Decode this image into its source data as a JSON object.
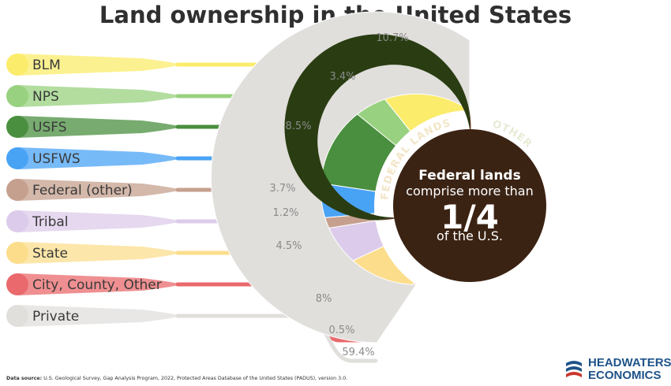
{
  "title": "Land ownership in the United States",
  "source": {
    "label": "Data source:",
    "text": "U.S. Geological Survey, Gap Analysis Program, 2022, Protected Areas Database of the United States (PADUS), version 3.0."
  },
  "logo": {
    "line1": "HEADWATERS",
    "line2": "ECONOMICS"
  },
  "center": {
    "line1": "Federal lands",
    "line2": "comprise more than",
    "line3": "1/4",
    "line4": "of the U.S.",
    "ring_federal": "FEDERAL LANDS",
    "ring_other": "OTHER"
  },
  "chart_data": {
    "type": "pie",
    "title": "Land ownership in the United States",
    "categories": [
      "BLM",
      "NPS",
      "USFS",
      "USFWS",
      "Federal (other)",
      "Tribal",
      "State",
      "City, County, Other",
      "Private"
    ],
    "values": [
      10.7,
      3.4,
      8.5,
      3.7,
      1.2,
      4.5,
      8,
      0.5,
      59.4
    ],
    "labels": [
      "10.7%",
      "3.4%",
      "8.5%",
      "3.7%",
      "1.2%",
      "4.5%",
      "8%",
      "0.5%",
      "59.4%"
    ],
    "colors": [
      "#fbec6b",
      "#98d17f",
      "#4a8f3f",
      "#49a3f5",
      "#c6a08e",
      "#dccbea",
      "#fbdd8c",
      "#e9696c",
      "#e1dfdc"
    ],
    "groups": [
      {
        "name": "FEDERAL LANDS",
        "value": 27.5,
        "color": "#5a2f1e"
      },
      {
        "name": "OTHER",
        "value": 72.5,
        "color": "#2a3d12"
      }
    ],
    "legend_position": "left"
  }
}
